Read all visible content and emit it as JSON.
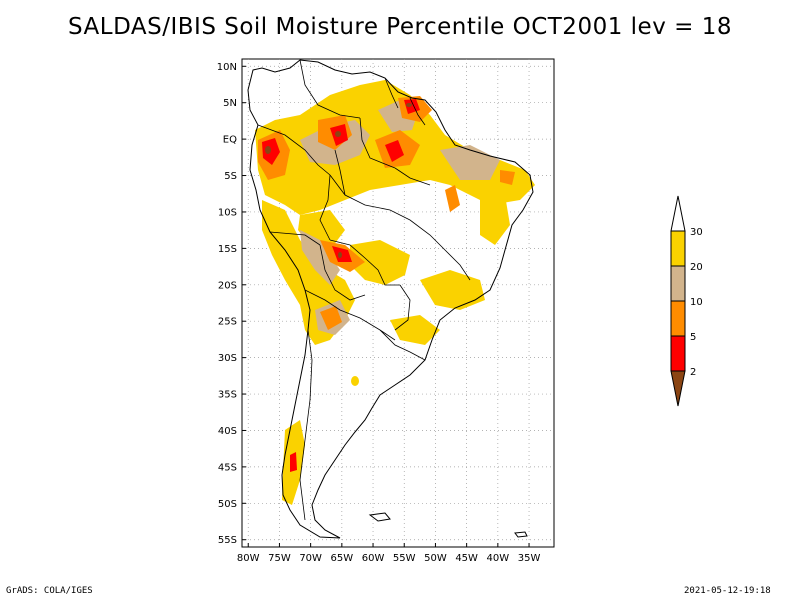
{
  "title": "SALDAS/IBIS Soil Moisture Percentile OCT2001 lev = 18",
  "footer": {
    "left": "GrADS: COLA/IGES",
    "right": "2021-05-12-19:18"
  },
  "map": {
    "lon_range": [
      -81,
      -31
    ],
    "lat_range": [
      -56,
      11
    ],
    "lat_ticks": [
      "10N",
      "5N",
      "EQ",
      "5S",
      "10S",
      "15S",
      "20S",
      "25S",
      "30S",
      "35S",
      "40S",
      "45S",
      "50S",
      "55S"
    ],
    "lat_values": [
      10,
      5,
      0,
      -5,
      -10,
      -15,
      -20,
      -25,
      -30,
      -35,
      -40,
      -45,
      -50,
      -55
    ],
    "lon_ticks": [
      "80W",
      "75W",
      "70W",
      "65W",
      "60W",
      "55W",
      "50W",
      "45W",
      "40W",
      "35W"
    ],
    "lon_values": [
      -80,
      -75,
      -70,
      -65,
      -60,
      -55,
      -50,
      -45,
      -40,
      -35
    ]
  },
  "legend": {
    "labels": [
      "30",
      "20",
      "10",
      "5",
      "2"
    ],
    "colors": {
      "above": "#ffffff",
      "c20_30": "#fad200",
      "c10_20": "#d2b48c",
      "c5_10": "#ff8c00",
      "c2_5": "#ff0000",
      "below": "#8b4513"
    }
  },
  "colors": {
    "yellow": "#fad200",
    "tan": "#d2b48c",
    "orange": "#ff8c00",
    "red": "#ff0000",
    "brown": "#8b4513",
    "coast": "#000000"
  }
}
